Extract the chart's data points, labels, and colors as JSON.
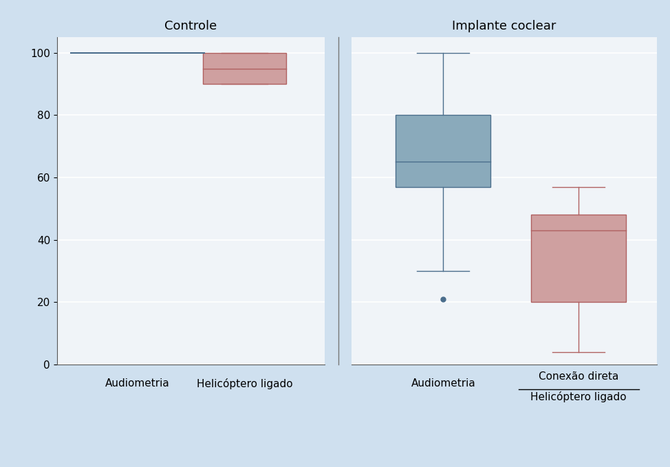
{
  "background_color": "#cfe0ef",
  "plot_bg_color": "#f0f4f8",
  "panel_titles": [
    "Controle",
    "Implante coclear"
  ],
  "groups": [
    {
      "label": "Audiometria",
      "panel": 0,
      "whisker_low": 100,
      "q1": 100,
      "median": 100,
      "q3": 100,
      "whisker_high": 100,
      "outliers": [],
      "edge_color": "#4a6d8c",
      "box_color": "#4a6d8c",
      "is_line_only": true,
      "line_width": 1.5
    },
    {
      "label": "Helicóptero ligado",
      "panel": 0,
      "whisker_low": 90,
      "q1": 90,
      "median": 95,
      "q3": 100,
      "whisker_high": 100,
      "outliers": [],
      "edge_color": "#b06060",
      "box_color": "#cfa0a0",
      "is_line_only": false,
      "line_width": 1.0
    },
    {
      "label": "Audiometria",
      "panel": 1,
      "whisker_low": 30,
      "q1": 57,
      "median": 65,
      "q3": 80,
      "whisker_high": 100,
      "outliers": [
        21
      ],
      "edge_color": "#4a6d8c",
      "box_color": "#8aaabb",
      "is_line_only": false,
      "line_width": 1.0
    },
    {
      "label_line1": "Conexão direta",
      "label_line2": "Helicóptero ligado",
      "panel": 1,
      "whisker_low": 4,
      "q1": 20,
      "median": 43,
      "q3": 48,
      "whisker_high": 57,
      "outliers": [],
      "edge_color": "#b06060",
      "box_color": "#cfa0a0",
      "is_line_only": false,
      "line_width": 1.0
    }
  ],
  "ylim": [
    0,
    105
  ],
  "yticks": [
    0,
    20,
    40,
    60,
    80,
    100
  ],
  "box_width": 0.28,
  "font_family": "DejaVu Sans",
  "title_fontsize": 13,
  "tick_fontsize": 11,
  "label_fontsize": 11
}
